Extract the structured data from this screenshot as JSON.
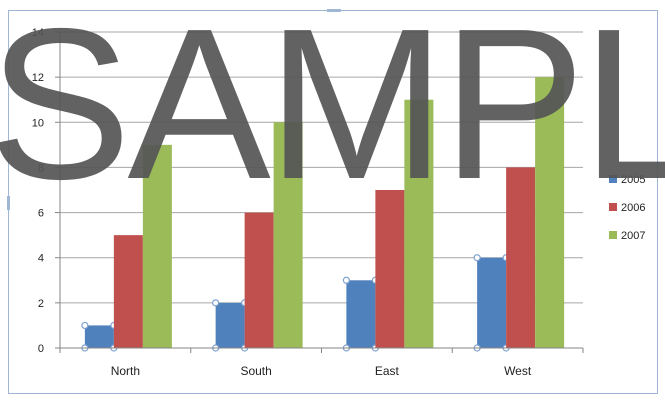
{
  "watermark": "SAMPLE",
  "chart_data": {
    "type": "bar",
    "categories": [
      "North",
      "South",
      "East",
      "West"
    ],
    "series": [
      {
        "name": "2005",
        "values": [
          1,
          2,
          3,
          4
        ],
        "color": "#4f81bd"
      },
      {
        "name": "2006",
        "values": [
          5,
          6,
          7,
          8
        ],
        "color": "#c0504d"
      },
      {
        "name": "2007",
        "values": [
          9,
          10,
          11,
          12
        ],
        "color": "#9bbb59"
      }
    ],
    "ylim": [
      0,
      14
    ],
    "yticks": [
      "0",
      "2",
      "4",
      "6",
      "8",
      "10",
      "12",
      "14"
    ],
    "grid": true,
    "legend": "right",
    "selected_series": "2005"
  }
}
